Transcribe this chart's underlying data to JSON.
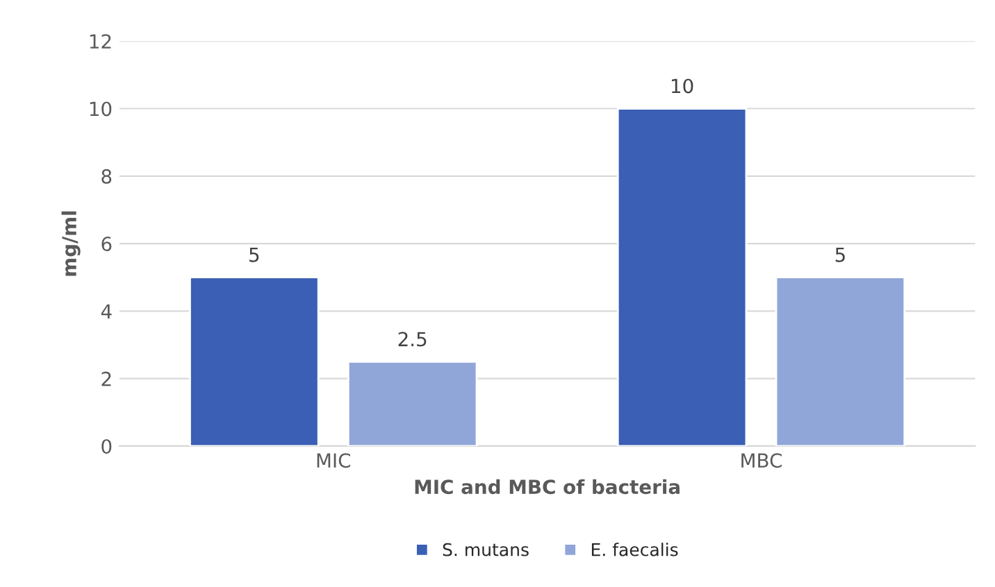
{
  "chart_data": {
    "type": "bar",
    "xlabel": "MIC and MBC of bacteria",
    "ylabel": "mg/ml",
    "categories": [
      "MIC",
      "MBC"
    ],
    "series": [
      {
        "name": "S. mutans",
        "color": "#3a5fb4",
        "values": [
          5,
          10
        ]
      },
      {
        "name": "E. faecalis",
        "color": "#91a6d8",
        "values": [
          2.5,
          5
        ]
      }
    ],
    "ylim": [
      0,
      12
    ],
    "yticks": [
      0,
      2,
      4,
      6,
      8,
      10,
      12
    ],
    "grid": "y",
    "legend": "bottom",
    "data_labels": true
  }
}
